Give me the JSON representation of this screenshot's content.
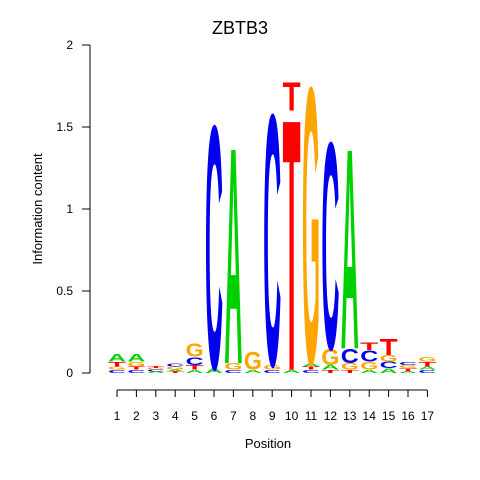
{
  "chart_data": {
    "type": "sequence-logo",
    "title": "ZBTB3",
    "xlabel": "Position",
    "ylabel": "Information content",
    "ylim": [
      0,
      2
    ],
    "y_ticks": [
      "0",
      "0.5",
      "1",
      "1.5",
      "2"
    ],
    "x_ticks": [
      "1",
      "2",
      "3",
      "4",
      "5",
      "6",
      "7",
      "8",
      "9",
      "10",
      "11",
      "12",
      "13",
      "14",
      "15",
      "16",
      "17"
    ],
    "colors": {
      "A": "#00d000",
      "C": "#0000ee",
      "G": "#ffa500",
      "T": "#ff0000"
    },
    "positions": [
      {
        "pos": 1,
        "stack": [
          {
            "l": "C",
            "h": 0.02
          },
          {
            "l": "G",
            "h": 0.02
          },
          {
            "l": "T",
            "h": 0.03
          },
          {
            "l": "A",
            "h": 0.05
          }
        ]
      },
      {
        "pos": 2,
        "stack": [
          {
            "l": "C",
            "h": 0.02
          },
          {
            "l": "T",
            "h": 0.02
          },
          {
            "l": "G",
            "h": 0.03
          },
          {
            "l": "A",
            "h": 0.05
          }
        ]
      },
      {
        "pos": 3,
        "stack": [
          {
            "l": "A",
            "h": 0.01
          },
          {
            "l": "C",
            "h": 0.01
          },
          {
            "l": "G",
            "h": 0.01
          },
          {
            "l": "T",
            "h": 0.01
          }
        ]
      },
      {
        "pos": 4,
        "stack": [
          {
            "l": "T",
            "h": 0.01
          },
          {
            "l": "A",
            "h": 0.01
          },
          {
            "l": "G",
            "h": 0.02
          },
          {
            "l": "C",
            "h": 0.02
          }
        ]
      },
      {
        "pos": 5,
        "stack": [
          {
            "l": "A",
            "h": 0.02
          },
          {
            "l": "T",
            "h": 0.03
          },
          {
            "l": "C",
            "h": 0.05
          },
          {
            "l": "G",
            "h": 0.08
          }
        ]
      },
      {
        "pos": 6,
        "stack": [
          {
            "l": "A",
            "h": 0.03
          },
          {
            "l": "C",
            "h": 1.53
          }
        ]
      },
      {
        "pos": 7,
        "stack": [
          {
            "l": "C",
            "h": 0.02
          },
          {
            "l": "G",
            "h": 0.04
          },
          {
            "l": "A",
            "h": 1.36
          }
        ]
      },
      {
        "pos": 8,
        "stack": [
          {
            "l": "A",
            "h": 0.02
          },
          {
            "l": "G",
            "h": 0.11
          }
        ]
      },
      {
        "pos": 9,
        "stack": [
          {
            "l": "C",
            "h": 0.02
          },
          {
            "l": "G",
            "h": 0.03
          },
          {
            "l": "C",
            "h": 1.58
          }
        ]
      },
      {
        "pos": 10,
        "stack": [
          {
            "l": "A",
            "h": 0.02
          },
          {
            "l": "T",
            "h": 1.58
          },
          {
            "l": "T",
            "h": 0.18
          }
        ]
      },
      {
        "pos": 11,
        "stack": [
          {
            "l": "C",
            "h": 0.02
          },
          {
            "l": "T",
            "h": 0.02
          },
          {
            "l": "A",
            "h": 0.02
          },
          {
            "l": "G",
            "h": 1.74
          }
        ]
      },
      {
        "pos": 12,
        "stack": [
          {
            "l": "T",
            "h": 0.02
          },
          {
            "l": "A",
            "h": 0.03
          },
          {
            "l": "G",
            "h": 0.1
          },
          {
            "l": "C",
            "h": 1.3
          }
        ]
      },
      {
        "pos": 13,
        "stack": [
          {
            "l": "T",
            "h": 0.02
          },
          {
            "l": "G",
            "h": 0.04
          },
          {
            "l": "C",
            "h": 0.09
          },
          {
            "l": "A",
            "h": 1.26
          }
        ]
      },
      {
        "pos": 14,
        "stack": [
          {
            "l": "A",
            "h": 0.02
          },
          {
            "l": "G",
            "h": 0.05
          },
          {
            "l": "C",
            "h": 0.07
          },
          {
            "l": "T",
            "h": 0.05
          }
        ]
      },
      {
        "pos": 15,
        "stack": [
          {
            "l": "A",
            "h": 0.03
          },
          {
            "l": "C",
            "h": 0.04
          },
          {
            "l": "G",
            "h": 0.04
          },
          {
            "l": "T",
            "h": 0.1
          }
        ]
      },
      {
        "pos": 16,
        "stack": [
          {
            "l": "A",
            "h": 0.01
          },
          {
            "l": "T",
            "h": 0.02
          },
          {
            "l": "G",
            "h": 0.02
          },
          {
            "l": "C",
            "h": 0.02
          }
        ]
      },
      {
        "pos": 17,
        "stack": [
          {
            "l": "C",
            "h": 0.02
          },
          {
            "l": "A",
            "h": 0.02
          },
          {
            "l": "T",
            "h": 0.03
          },
          {
            "l": "G",
            "h": 0.03
          }
        ]
      }
    ]
  }
}
